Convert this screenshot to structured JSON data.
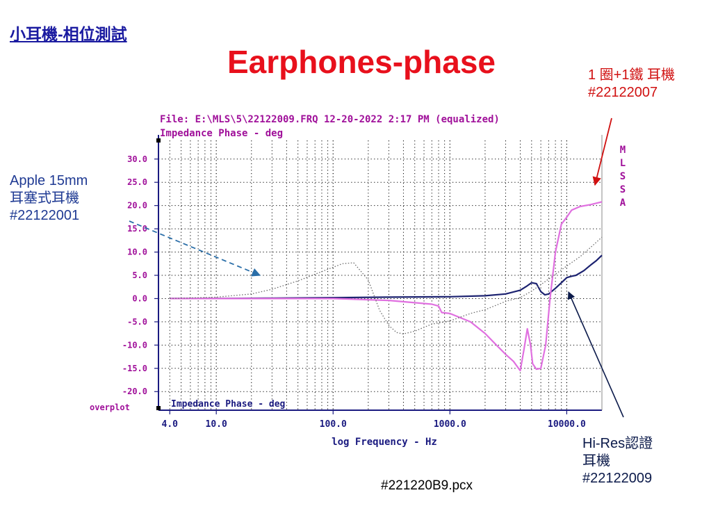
{
  "slide": {
    "heading": "小耳機-相位測試",
    "title": "Earphones-phase",
    "caption": "#221220B9.pcx"
  },
  "annotations": {
    "red": {
      "lines": [
        "1 圈+1鐵 耳機",
        "#22122007"
      ],
      "color": "#d01010"
    },
    "apple": {
      "lines": [
        "Apple 15mm",
        "耳塞式耳機",
        "#22122001"
      ],
      "color": "#1f3a93"
    },
    "hires": {
      "lines": [
        "Hi-Res認證",
        "耳機",
        "#22122009"
      ],
      "color": "#0b1a4a"
    }
  },
  "chart_data": {
    "type": "line",
    "header_line1": "File: E:\\MLS\\5\\22122009.FRQ 12-20-2022 2:17 PM (equalized)",
    "header_line2": "Impedance Phase - deg",
    "inner_label": "Impedance Phase - deg",
    "xlabel": "log Frequency - Hz",
    "overplot_label": "overplot",
    "side_label": [
      "M",
      "L",
      "S",
      "S",
      "A"
    ],
    "x_scale": "log",
    "xlim": [
      3.2,
      20000
    ],
    "ylim": [
      -24,
      34
    ],
    "x_ticks": [
      {
        "value": 4,
        "label": "4.0"
      },
      {
        "value": 10,
        "label": "10.0"
      },
      {
        "value": 100,
        "label": "100.0"
      },
      {
        "value": 1000,
        "label": "1000.0"
      },
      {
        "value": 10000,
        "label": "10000.0"
      }
    ],
    "y_ticks": [
      {
        "value": 30,
        "label": "30.0"
      },
      {
        "value": 25,
        "label": "25.0"
      },
      {
        "value": 20,
        "label": "20.0"
      },
      {
        "value": 15,
        "label": "15.0"
      },
      {
        "value": 10,
        "label": "10.0"
      },
      {
        "value": 5,
        "label": "5.0"
      },
      {
        "value": 0,
        "label": "0.0"
      },
      {
        "value": -5,
        "label": "-5.0"
      },
      {
        "value": -10,
        "label": "-10.0"
      },
      {
        "value": -15,
        "label": "-15.0"
      },
      {
        "value": -20,
        "label": "-20.0"
      }
    ],
    "grid": true,
    "colors": {
      "text": "#a0109a",
      "axis": "#1a1a80",
      "grid": "#000000"
    },
    "series": [
      {
        "color": "#1c2270",
        "style": "solid",
        "x": [
          4,
          10,
          30,
          100,
          300,
          1000,
          2000,
          3000,
          4000,
          4500,
          5000,
          5500,
          6000,
          6500,
          7000,
          8000,
          9000,
          10000,
          11000,
          12000,
          14000,
          16000,
          18000,
          20000
        ],
        "y": [
          0,
          0,
          0.1,
          0.2,
          0.3,
          0.4,
          0.6,
          1,
          1.8,
          2.6,
          3.4,
          3.2,
          1.5,
          0.8,
          1,
          2.2,
          3.4,
          4.5,
          4.8,
          5,
          6,
          7.2,
          8.2,
          9.3
        ]
      },
      {
        "color": "#e070e0",
        "style": "solid",
        "x": [
          4,
          10,
          30,
          100,
          300,
          700,
          800,
          850,
          1000,
          1500,
          2000,
          2500,
          3000,
          3500,
          4000,
          4300,
          4600,
          4900,
          5100,
          5500,
          6000,
          6600,
          7200,
          8000,
          9000,
          10000,
          11000,
          13000,
          16000,
          20000
        ],
        "y": [
          0,
          0,
          0,
          0,
          -0.4,
          -1.2,
          -1.6,
          -3,
          -3.2,
          -5,
          -7.5,
          -10,
          -12,
          -13.5,
          -15.5,
          -11,
          -6.5,
          -10,
          -14,
          -15.2,
          -15,
          -10,
          0,
          10,
          16,
          17.5,
          19,
          19.8,
          20.2,
          20.8
        ]
      },
      {
        "color": "#6a6a6a",
        "style": "dotted",
        "x": [
          4,
          10,
          20,
          30,
          50,
          80,
          120,
          150,
          200,
          250,
          300,
          350,
          400,
          500,
          700,
          1000,
          1500,
          2000,
          3000,
          4000,
          5000,
          7000,
          10000,
          13000,
          16000,
          20000
        ],
        "y": [
          0,
          0.3,
          1,
          2,
          3.8,
          5.8,
          7.5,
          7.7,
          4,
          -2.5,
          -5.8,
          -7.3,
          -7.6,
          -7,
          -5.5,
          -4.8,
          -3.2,
          -2.4,
          -0.6,
          0.2,
          1.6,
          4.2,
          7,
          9,
          11,
          13.2
        ]
      }
    ]
  }
}
